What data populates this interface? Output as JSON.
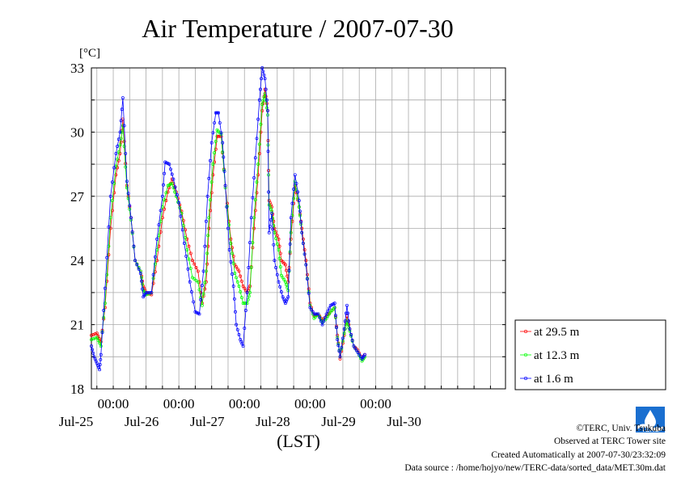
{
  "chart_data": {
    "type": "line",
    "title": "Air Temperature / 2007-07-30",
    "ylabel": "[°C]",
    "xlabel": "(LST)",
    "ylim": [
      18,
      33
    ],
    "yticks": [
      "18",
      "21",
      "24",
      "27",
      "30",
      "33"
    ],
    "xlim": [
      "2007-07-24T16:00",
      "2007-07-30T23:30"
    ],
    "x_time_ticks": [
      {
        "label": "00:00",
        "date": "2007-07-25T00:00"
      },
      {
        "label": "00:00",
        "date": "2007-07-26T00:00"
      },
      {
        "label": "00:00",
        "date": "2007-07-27T00:00"
      },
      {
        "label": "00:00",
        "date": "2007-07-28T00:00"
      },
      {
        "label": "00:00",
        "date": "2007-07-29T00:00"
      }
    ],
    "x_date_labels": [
      {
        "label": "Jul-25",
        "date": "2007-07-25T00:00"
      },
      {
        "label": "Jul-26",
        "date": "2007-07-26T00:00"
      },
      {
        "label": "Jul-27",
        "date": "2007-07-27T00:00"
      },
      {
        "label": "Jul-28",
        "date": "2007-07-28T00:00"
      },
      {
        "label": "Jul-29",
        "date": "2007-07-29T00:00"
      },
      {
        "label": "Jul-30",
        "date": "2007-07-30T00:00"
      }
    ],
    "grid": true,
    "legend_position": "right",
    "series": [
      {
        "name": "at 29.5 m",
        "color": "#ff0000",
        "points": [
          [
            "2007-07-24T16:00",
            20.5
          ],
          [
            "2007-07-24T18:00",
            20.6
          ],
          [
            "2007-07-24T19:30",
            20.2
          ],
          [
            "2007-07-24T21:00",
            21.8
          ],
          [
            "2007-07-24T23:00",
            25.5
          ],
          [
            "2007-07-25T01:00",
            28.0
          ],
          [
            "2007-07-25T02:30",
            29.0
          ],
          [
            "2007-07-25T03:30",
            30.6
          ],
          [
            "2007-07-25T05:00",
            27.5
          ],
          [
            "2007-07-25T06:30",
            26.0
          ],
          [
            "2007-07-25T08:00",
            24.0
          ],
          [
            "2007-07-25T10:00",
            23.5
          ],
          [
            "2007-07-25T11:00",
            22.8
          ],
          [
            "2007-07-25T12:00",
            22.5
          ],
          [
            "2007-07-25T14:00",
            22.4
          ],
          [
            "2007-07-25T16:00",
            24.0
          ],
          [
            "2007-07-25T18:00",
            26.0
          ],
          [
            "2007-07-25T20:00",
            27.2
          ],
          [
            "2007-07-25T21:30",
            27.8
          ],
          [
            "2007-07-25T23:00",
            27.2
          ],
          [
            "2007-07-26T01:00",
            26.3
          ],
          [
            "2007-07-26T03:00",
            25.0
          ],
          [
            "2007-07-26T05:00",
            24.0
          ],
          [
            "2007-07-26T07:00",
            23.5
          ],
          [
            "2007-07-26T08:30",
            22.0
          ],
          [
            "2007-07-26T10:00",
            23.0
          ],
          [
            "2007-07-26T11:00",
            25.5
          ],
          [
            "2007-07-26T12:30",
            28.0
          ],
          [
            "2007-07-26T14:00",
            29.8
          ],
          [
            "2007-07-26T15:30",
            29.8
          ],
          [
            "2007-07-26T17:00",
            27.5
          ],
          [
            "2007-07-26T19:00",
            25.0
          ],
          [
            "2007-07-26T20:30",
            23.8
          ],
          [
            "2007-07-26T22:00",
            23.5
          ],
          [
            "2007-07-26T23:30",
            22.8
          ],
          [
            "2007-07-27T01:00",
            22.5
          ],
          [
            "2007-07-27T02:00",
            22.8
          ],
          [
            "2007-07-27T03:30",
            25.5
          ],
          [
            "2007-07-27T05:00",
            28.0
          ],
          [
            "2007-07-27T06:30",
            31.0
          ],
          [
            "2007-07-27T07:30",
            32.0
          ],
          [
            "2007-07-27T08:30",
            31.0
          ],
          [
            "2007-07-27T09:00",
            26.8
          ],
          [
            "2007-07-27T10:00",
            26.5
          ],
          [
            "2007-07-27T11:00",
            25.5
          ],
          [
            "2007-07-27T12:30",
            25.0
          ],
          [
            "2007-07-27T13:30",
            24.0
          ],
          [
            "2007-07-27T15:00",
            23.8
          ],
          [
            "2007-07-27T16:00",
            23.0
          ],
          [
            "2007-07-27T17:00",
            25.0
          ],
          [
            "2007-07-27T18:30",
            27.5
          ],
          [
            "2007-07-27T20:00",
            26.5
          ],
          [
            "2007-07-27T21:00",
            25.5
          ],
          [
            "2007-07-27T22:30",
            24.0
          ],
          [
            "2007-07-28T00:00",
            22.0
          ],
          [
            "2007-07-28T01:30",
            21.4
          ],
          [
            "2007-07-28T03:00",
            21.5
          ],
          [
            "2007-07-28T04:30",
            21.2
          ],
          [
            "2007-07-28T06:00",
            21.4
          ],
          [
            "2007-07-28T07:30",
            21.6
          ],
          [
            "2007-07-28T09:00",
            21.8
          ],
          [
            "2007-07-28T10:00",
            20.5
          ],
          [
            "2007-07-28T11:00",
            19.4
          ],
          [
            "2007-07-28T12:30",
            20.5
          ],
          [
            "2007-07-28T13:30",
            21.4
          ],
          [
            "2007-07-28T14:30",
            20.8
          ],
          [
            "2007-07-28T16:00",
            20.0
          ],
          [
            "2007-07-28T17:30",
            19.8
          ],
          [
            "2007-07-28T19:00",
            19.4
          ],
          [
            "2007-07-28T20:00",
            19.6
          ]
        ]
      },
      {
        "name": "at 12.3 m",
        "color": "#00ff00",
        "points": [
          [
            "2007-07-24T16:00",
            20.3
          ],
          [
            "2007-07-24T18:00",
            20.4
          ],
          [
            "2007-07-24T19:30",
            20.0
          ],
          [
            "2007-07-24T21:00",
            22.0
          ],
          [
            "2007-07-24T23:00",
            26.0
          ],
          [
            "2007-07-25T01:00",
            28.4
          ],
          [
            "2007-07-25T02:30",
            29.4
          ],
          [
            "2007-07-25T03:30",
            30.3
          ],
          [
            "2007-07-25T05:00",
            27.4
          ],
          [
            "2007-07-25T06:30",
            25.9
          ],
          [
            "2007-07-25T08:00",
            24.0
          ],
          [
            "2007-07-25T10:00",
            23.5
          ],
          [
            "2007-07-25T11:00",
            22.6
          ],
          [
            "2007-07-25T12:00",
            22.4
          ],
          [
            "2007-07-25T14:00",
            22.5
          ],
          [
            "2007-07-25T16:00",
            24.5
          ],
          [
            "2007-07-25T18:00",
            26.5
          ],
          [
            "2007-07-25T20:00",
            27.5
          ],
          [
            "2007-07-25T21:30",
            27.6
          ],
          [
            "2007-07-25T23:00",
            27.0
          ],
          [
            "2007-07-26T01:00",
            26.2
          ],
          [
            "2007-07-26T03:00",
            24.5
          ],
          [
            "2007-07-26T05:00",
            23.2
          ],
          [
            "2007-07-26T07:00",
            23.0
          ],
          [
            "2007-07-26T08:30",
            21.9
          ],
          [
            "2007-07-26T10:00",
            23.5
          ],
          [
            "2007-07-26T11:00",
            26.0
          ],
          [
            "2007-07-26T12:30",
            28.5
          ],
          [
            "2007-07-26T14:00",
            30.1
          ],
          [
            "2007-07-26T15:30",
            29.9
          ],
          [
            "2007-07-26T17:00",
            27.4
          ],
          [
            "2007-07-26T19:00",
            24.8
          ],
          [
            "2007-07-26T20:30",
            23.4
          ],
          [
            "2007-07-26T22:00",
            22.8
          ],
          [
            "2007-07-26T23:30",
            22.0
          ],
          [
            "2007-07-27T01:00",
            22.0
          ],
          [
            "2007-07-27T02:00",
            22.5
          ],
          [
            "2007-07-27T03:30",
            26.0
          ],
          [
            "2007-07-27T05:00",
            28.5
          ],
          [
            "2007-07-27T06:30",
            31.3
          ],
          [
            "2007-07-27T07:30",
            31.8
          ],
          [
            "2007-07-27T08:30",
            30.8
          ],
          [
            "2007-07-27T09:00",
            26.6
          ],
          [
            "2007-07-27T10:00",
            26.3
          ],
          [
            "2007-07-27T11:00",
            25.3
          ],
          [
            "2007-07-27T12:30",
            24.5
          ],
          [
            "2007-07-27T13:30",
            23.3
          ],
          [
            "2007-07-27T15:00",
            23.0
          ],
          [
            "2007-07-27T16:00",
            22.6
          ],
          [
            "2007-07-27T17:00",
            25.3
          ],
          [
            "2007-07-27T18:30",
            27.7
          ],
          [
            "2007-07-27T20:00",
            26.5
          ],
          [
            "2007-07-27T21:00",
            25.3
          ],
          [
            "2007-07-27T22:30",
            23.8
          ],
          [
            "2007-07-28T00:00",
            21.9
          ],
          [
            "2007-07-28T01:30",
            21.3
          ],
          [
            "2007-07-28T03:00",
            21.5
          ],
          [
            "2007-07-28T04:30",
            21.1
          ],
          [
            "2007-07-28T06:00",
            21.3
          ],
          [
            "2007-07-28T07:30",
            21.6
          ],
          [
            "2007-07-28T09:00",
            21.8
          ],
          [
            "2007-07-28T10:00",
            20.4
          ],
          [
            "2007-07-28T11:00",
            19.5
          ],
          [
            "2007-07-28T12:30",
            20.6
          ],
          [
            "2007-07-28T13:30",
            21.2
          ],
          [
            "2007-07-28T14:30",
            20.7
          ],
          [
            "2007-07-28T16:00",
            20.0
          ],
          [
            "2007-07-28T17:30",
            19.7
          ],
          [
            "2007-07-28T19:00",
            19.3
          ],
          [
            "2007-07-28T20:00",
            19.5
          ]
        ]
      },
      {
        "name": "at 1.6 m",
        "color": "#0000ff",
        "points": [
          [
            "2007-07-24T16:00",
            20.0
          ],
          [
            "2007-07-24T17:00",
            19.5
          ],
          [
            "2007-07-24T18:00",
            19.2
          ],
          [
            "2007-07-24T19:00",
            18.9
          ],
          [
            "2007-07-24T19:30",
            19.6
          ],
          [
            "2007-07-24T21:00",
            22.7
          ],
          [
            "2007-07-24T23:00",
            27.0
          ],
          [
            "2007-07-25T01:00",
            29.0
          ],
          [
            "2007-07-25T02:30",
            30.0
          ],
          [
            "2007-07-25T03:30",
            31.6
          ],
          [
            "2007-07-25T05:00",
            27.7
          ],
          [
            "2007-07-25T06:30",
            26.0
          ],
          [
            "2007-07-25T08:00",
            24.0
          ],
          [
            "2007-07-25T10:00",
            23.4
          ],
          [
            "2007-07-25T11:00",
            22.3
          ],
          [
            "2007-07-25T12:00",
            22.5
          ],
          [
            "2007-07-25T14:00",
            22.5
          ],
          [
            "2007-07-25T16:00",
            25.0
          ],
          [
            "2007-07-25T18:00",
            27.0
          ],
          [
            "2007-07-25T19:00",
            28.6
          ],
          [
            "2007-07-25T20:30",
            28.5
          ],
          [
            "2007-07-25T22:00",
            27.8
          ],
          [
            "2007-07-26T00:00",
            26.7
          ],
          [
            "2007-07-26T02:00",
            24.8
          ],
          [
            "2007-07-26T04:00",
            23.0
          ],
          [
            "2007-07-26T06:00",
            21.6
          ],
          [
            "2007-07-26T07:30",
            21.5
          ],
          [
            "2007-07-26T09:00",
            23.5
          ],
          [
            "2007-07-26T10:30",
            27.0
          ],
          [
            "2007-07-26T12:00",
            29.5
          ],
          [
            "2007-07-26T13:30",
            30.9
          ],
          [
            "2007-07-26T14:30",
            30.9
          ],
          [
            "2007-07-26T16:00",
            29.5
          ],
          [
            "2007-07-26T17:00",
            27.5
          ],
          [
            "2007-07-26T18:30",
            24.5
          ],
          [
            "2007-07-26T20:00",
            22.8
          ],
          [
            "2007-07-26T21:00",
            21.0
          ],
          [
            "2007-07-26T22:30",
            20.3
          ],
          [
            "2007-07-26T23:30",
            20.0
          ],
          [
            "2007-07-27T01:00",
            22.5
          ],
          [
            "2007-07-27T02:30",
            26.0
          ],
          [
            "2007-07-27T04:00",
            28.8
          ],
          [
            "2007-07-27T05:30",
            31.5
          ],
          [
            "2007-07-27T06:30",
            33.0
          ],
          [
            "2007-07-27T07:30",
            32.5
          ],
          [
            "2007-07-27T08:30",
            31.0
          ],
          [
            "2007-07-27T09:00",
            25.3
          ],
          [
            "2007-07-27T10:00",
            26.2
          ],
          [
            "2007-07-27T11:00",
            24.0
          ],
          [
            "2007-07-27T12:30",
            23.0
          ],
          [
            "2007-07-27T14:00",
            22.3
          ],
          [
            "2007-07-27T15:00",
            22.0
          ],
          [
            "2007-07-27T16:00",
            22.3
          ],
          [
            "2007-07-27T17:00",
            26.0
          ],
          [
            "2007-07-27T18:30",
            28.0
          ],
          [
            "2007-07-27T20:00",
            26.8
          ],
          [
            "2007-07-27T21:00",
            25.3
          ],
          [
            "2007-07-27T22:30",
            23.8
          ],
          [
            "2007-07-28T00:00",
            21.8
          ],
          [
            "2007-07-28T01:30",
            21.5
          ],
          [
            "2007-07-28T03:00",
            21.5
          ],
          [
            "2007-07-28T04:30",
            21.0
          ],
          [
            "2007-07-28T06:00",
            21.5
          ],
          [
            "2007-07-28T07:30",
            21.9
          ],
          [
            "2007-07-28T09:00",
            22.0
          ],
          [
            "2007-07-28T10:00",
            20.3
          ],
          [
            "2007-07-28T11:00",
            19.5
          ],
          [
            "2007-07-28T12:30",
            20.8
          ],
          [
            "2007-07-28T13:30",
            21.9
          ],
          [
            "2007-07-28T14:30",
            20.8
          ],
          [
            "2007-07-28T16:00",
            20.0
          ],
          [
            "2007-07-28T17:30",
            19.7
          ],
          [
            "2007-07-28T19:00",
            19.4
          ],
          [
            "2007-07-28T20:00",
            19.6
          ]
        ]
      }
    ]
  },
  "credits": {
    "copyright": "©TERC, Univ. Tsukuba",
    "observed": "Observed at TERC Tower site",
    "created": "Created Automatically at 2007-07-30/23:32:09",
    "source": "Data source : /home/hojyo/new/TERC-data/sorted_data/MET.30m.dat",
    "logo_text": "TERC",
    "logo_color": "#1a6fd0"
  }
}
